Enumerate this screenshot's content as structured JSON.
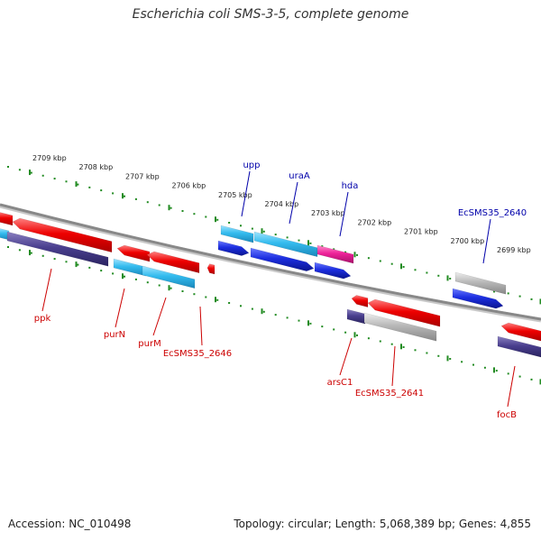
{
  "title": "Escherichia coli SMS-3-5, complete genome",
  "footer": {
    "accession": "Accession: NC_010498",
    "summary": "Topology: circular; Length: 5,068,389 bp; Genes: 4,855"
  },
  "ruler": [
    {
      "label": "2709 kbp",
      "pos": 2709
    },
    {
      "label": "2708 kbp",
      "pos": 2708
    },
    {
      "label": "2707 kbp",
      "pos": 2707
    },
    {
      "label": "2706 kbp",
      "pos": 2706
    },
    {
      "label": "2705 kbp",
      "pos": 2705
    },
    {
      "label": "2704 kbp",
      "pos": 2704
    },
    {
      "label": "2703 kbp",
      "pos": 2703
    },
    {
      "label": "2702 kbp",
      "pos": 2702
    },
    {
      "label": "2701 kbp",
      "pos": 2701
    },
    {
      "label": "2700 kbp",
      "pos": 2700
    },
    {
      "label": "2699 kbp",
      "pos": 2699
    }
  ],
  "gene_labels": [
    {
      "name": "upp",
      "strand": "forward",
      "color": "#0000aa"
    },
    {
      "name": "uraA",
      "strand": "forward",
      "color": "#0000aa"
    },
    {
      "name": "hda",
      "strand": "forward",
      "color": "#0000aa"
    },
    {
      "name": "EcSMS35_2640",
      "strand": "forward",
      "color": "#0000aa"
    },
    {
      "name": "ppk",
      "strand": "reverse",
      "color": "#cc0000"
    },
    {
      "name": "purN",
      "strand": "reverse",
      "color": "#cc0000"
    },
    {
      "name": "purM",
      "strand": "reverse",
      "color": "#cc0000"
    },
    {
      "name": "EcSMS35_2646",
      "strand": "reverse",
      "color": "#cc0000"
    },
    {
      "name": "arsC1",
      "strand": "reverse",
      "color": "#cc0000"
    },
    {
      "name": "EcSMS35_2641",
      "strand": "reverse",
      "color": "#cc0000"
    },
    {
      "name": "focB",
      "strand": "reverse",
      "color": "#cc0000"
    }
  ],
  "colors": {
    "cds": "#ee0000",
    "gene_upper": "#1c2ee0",
    "gene_lower": "#4a3f8f",
    "cyan": "#33bbee",
    "magenta": "#ee2299",
    "grey": "#b8b8b8",
    "backbone": "#888888",
    "tick": "#228b22"
  }
}
